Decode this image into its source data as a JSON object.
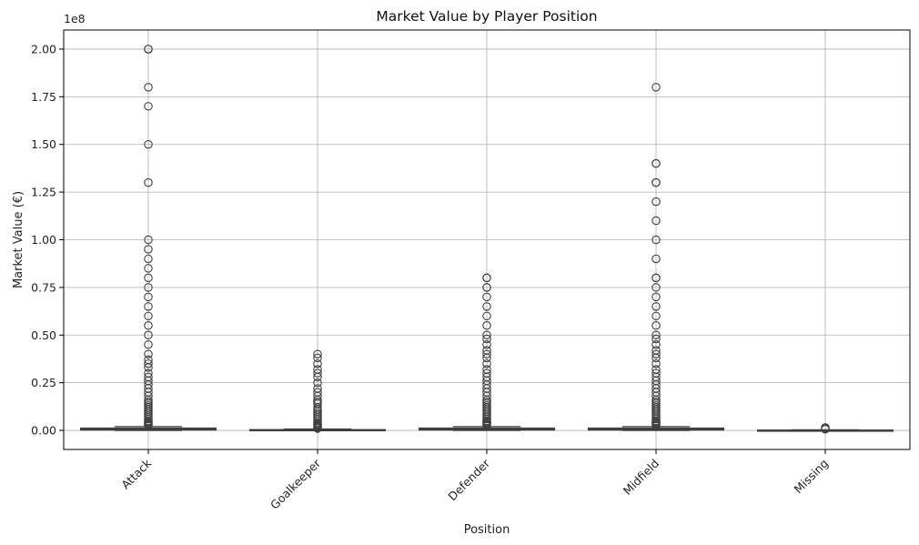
{
  "chart_data": {
    "type": "box",
    "title": "Market Value by Player Position",
    "xlabel": "Position",
    "ylabel": "Market Value (€)",
    "y_scale_label": "1e8",
    "ylim": [
      -10000000,
      210000000
    ],
    "y_ticks": [
      0,
      25000000,
      50000000,
      75000000,
      100000000,
      125000000,
      150000000,
      175000000,
      200000000
    ],
    "y_tick_labels": [
      "0.00",
      "0.25",
      "0.50",
      "0.75",
      "1.00",
      "1.25",
      "1.50",
      "1.75",
      "2.00"
    ],
    "grid": true,
    "x_tick_rotation": 45,
    "categories": [
      "Attack",
      "Goalkeeper",
      "Defender",
      "Midfield",
      "Missing"
    ],
    "boxes": [
      {
        "category": "Attack",
        "whisker_low": 0,
        "q1": 200000,
        "median": 700000,
        "q3": 1200000,
        "whisker_high": 2000000,
        "outliers": [
          200000000,
          200000000,
          180000000,
          170000000,
          150000000,
          130000000,
          100000000,
          95000000,
          90000000,
          85000000,
          80000000,
          75000000,
          70000000,
          65000000,
          60000000,
          55000000,
          50000000,
          45000000,
          40000000,
          37000000,
          35000000,
          33000000,
          30000000,
          28000000,
          26000000,
          24000000,
          22000000,
          20000000,
          18000000,
          16000000,
          15000000,
          14000000,
          13000000,
          12000000,
          11000000,
          10000000,
          9000000,
          8000000,
          7000000,
          6000000,
          5000000,
          4500000,
          4000000,
          3500000,
          3000000,
          2500000
        ]
      },
      {
        "category": "Goalkeeper",
        "whisker_low": 0,
        "q1": 50000,
        "median": 150000,
        "q3": 400000,
        "whisker_high": 700000,
        "outliers": [
          40000000,
          38000000,
          35000000,
          32000000,
          30000000,
          28000000,
          25000000,
          22000000,
          20000000,
          18000000,
          16000000,
          15000000,
          14000000,
          12000000,
          11000000,
          10000000,
          9000000,
          8000000,
          7000000,
          6000000,
          5000000,
          4000000,
          3500000,
          3000000,
          2500000,
          2000000,
          1500000,
          1000000
        ]
      },
      {
        "category": "Defender",
        "whisker_low": 0,
        "q1": 200000,
        "median": 600000,
        "q3": 1200000,
        "whisker_high": 2000000,
        "outliers": [
          80000000,
          80000000,
          75000000,
          75000000,
          70000000,
          65000000,
          60000000,
          55000000,
          50000000,
          48000000,
          45000000,
          42000000,
          40000000,
          38000000,
          35000000,
          32000000,
          30000000,
          28000000,
          26000000,
          24000000,
          22000000,
          20000000,
          18000000,
          16000000,
          15000000,
          14000000,
          13000000,
          12000000,
          11000000,
          10000000,
          9000000,
          8000000,
          7000000,
          6000000,
          5000000,
          4500000,
          4000000,
          3500000,
          3000000,
          2500000
        ]
      },
      {
        "category": "Midfield",
        "whisker_low": 0,
        "q1": 200000,
        "median": 700000,
        "q3": 1200000,
        "whisker_high": 2000000,
        "outliers": [
          180000000,
          140000000,
          140000000,
          130000000,
          130000000,
          120000000,
          110000000,
          100000000,
          90000000,
          80000000,
          80000000,
          75000000,
          70000000,
          65000000,
          60000000,
          55000000,
          50000000,
          48000000,
          45000000,
          42000000,
          40000000,
          38000000,
          35000000,
          32000000,
          30000000,
          28000000,
          26000000,
          24000000,
          22000000,
          20000000,
          18000000,
          16000000,
          15000000,
          14000000,
          13000000,
          12000000,
          11000000,
          10000000,
          9000000,
          8000000,
          7000000,
          6000000,
          5000000,
          4500000,
          4000000,
          3500000,
          3000000,
          2500000
        ]
      },
      {
        "category": "Missing",
        "whisker_low": 0,
        "q1": 0,
        "median": 50000,
        "q3": 150000,
        "whisker_high": 300000,
        "outliers": [
          1500000,
          1000000,
          600000
        ]
      }
    ],
    "colors": {
      "box_fill": "#ffffff",
      "box_stroke": "#3f3f3f",
      "grid": "#b0b0b0",
      "axis": "#000000",
      "text": "#222222"
    }
  }
}
